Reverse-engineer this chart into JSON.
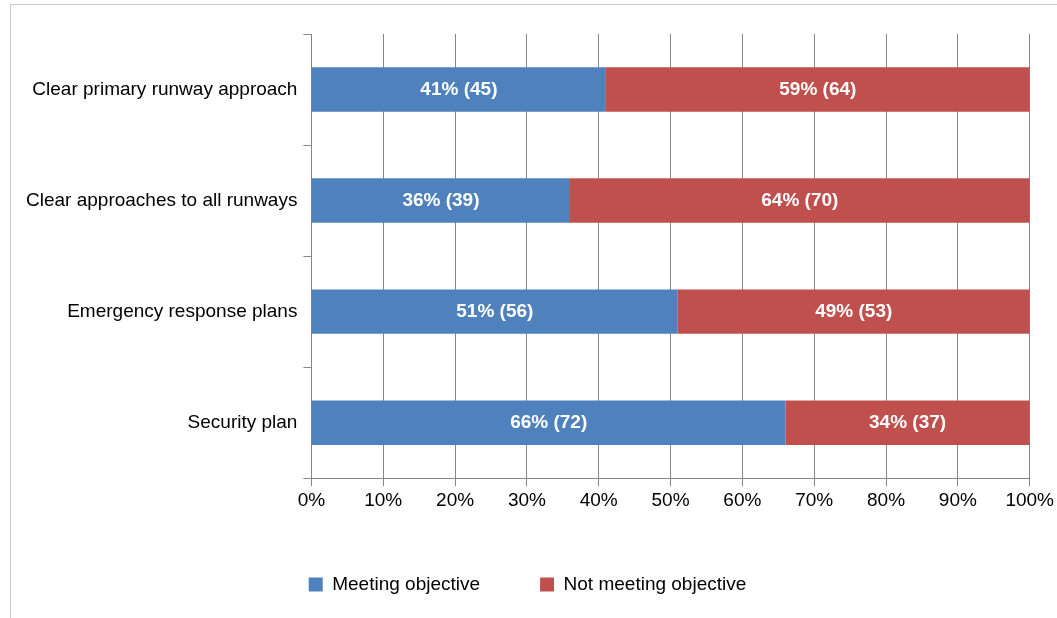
{
  "chart_data": {
    "type": "bar",
    "orientation": "horizontal",
    "stacked": true,
    "categories": [
      "Clear primary runway approach",
      "Clear approaches to all runways",
      "Emergency response plans",
      "Security plan"
    ],
    "series": [
      {
        "name": "Meeting objective",
        "color": "#4f81bd",
        "values": [
          41,
          36,
          51,
          66
        ],
        "value_labels": [
          "41% (45)",
          "36% (39)",
          "51% (56)",
          "66% (72)"
        ]
      },
      {
        "name": "Not meeting objective",
        "color": "#c0504d",
        "values": [
          59,
          64,
          49,
          34
        ],
        "value_labels": [
          "59% (64)",
          "64% (70)",
          "49% (53)",
          "34% (37)"
        ]
      }
    ],
    "xlim": [
      0,
      100
    ],
    "xticks": [
      {
        "value": 0,
        "label": "0%"
      },
      {
        "value": 10,
        "label": "10%"
      },
      {
        "value": 20,
        "label": "20%"
      },
      {
        "value": 30,
        "label": "30%"
      },
      {
        "value": 40,
        "label": "40%"
      },
      {
        "value": 50,
        "label": "50%"
      },
      {
        "value": 60,
        "label": "60%"
      },
      {
        "value": 70,
        "label": "70%"
      },
      {
        "value": 80,
        "label": "80%"
      },
      {
        "value": 90,
        "label": "90%"
      },
      {
        "value": 100,
        "label": "100%"
      }
    ],
    "grid": "x",
    "legend": "bottom"
  }
}
